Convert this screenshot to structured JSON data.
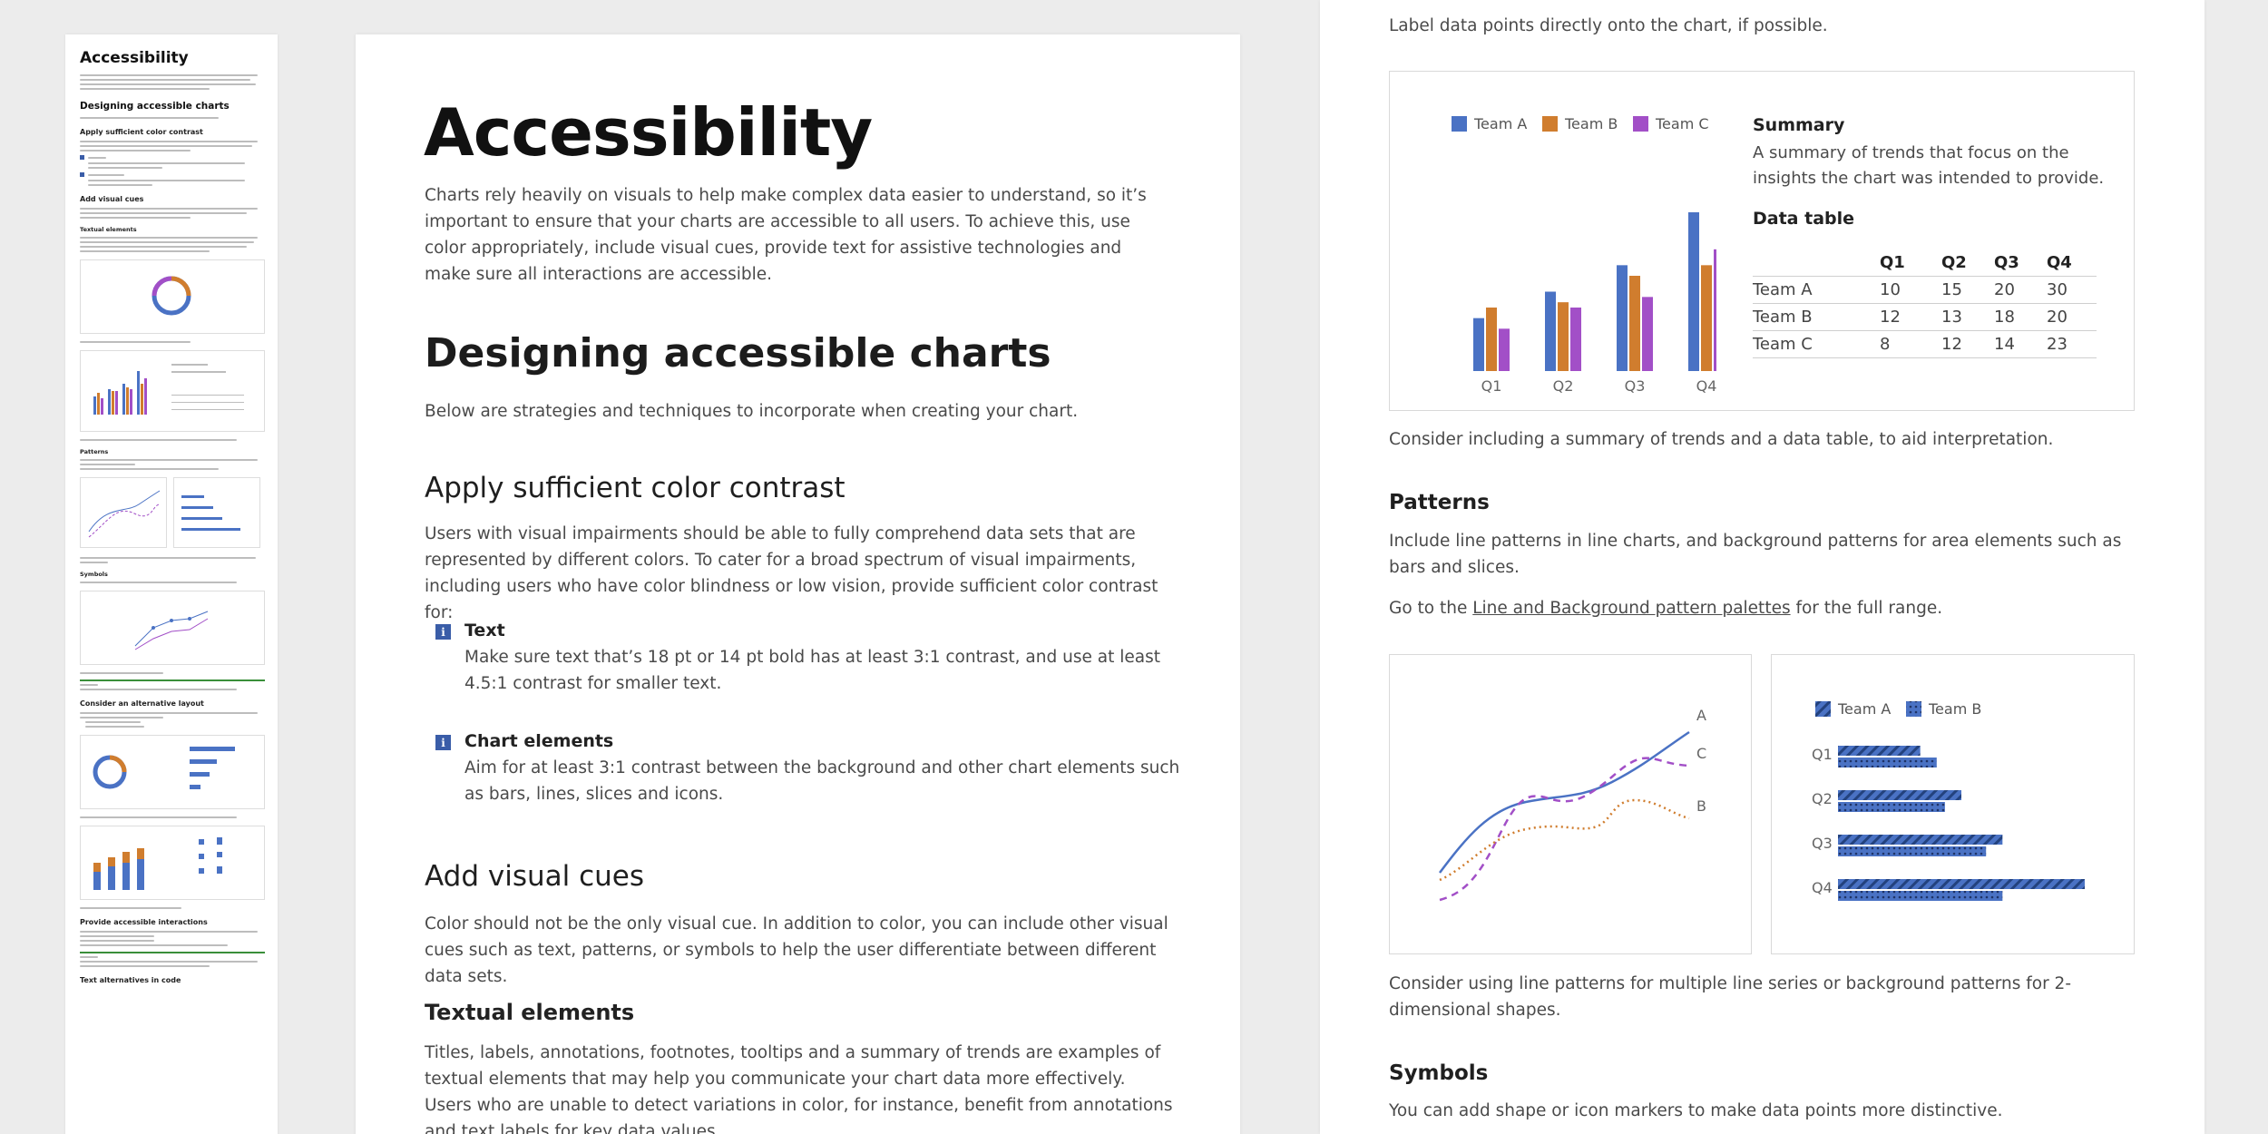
{
  "thumbnail": {
    "title": "Accessibility",
    "h_designing": "Designing accessible charts",
    "h_contrast": "Apply sufficient color contrast",
    "h_visual_cues": "Add visual cues",
    "h_textual": "Textual elements",
    "h_patterns": "Patterns",
    "h_symbols": "Symbols",
    "h_layout": "Consider an alternative layout",
    "h_interactions": "Provide accessible interactions",
    "h_text_alt": "Text alternatives in code"
  },
  "main": {
    "title": "Accessibility",
    "intro": "Charts rely heavily on visuals to help make complex data easier to understand, so it’s important to ensure that your charts are accessible to all users. To achieve this, use color appropriately, include visual cues, provide text for assistive technologies and make sure all interactions are accessible.",
    "designing_heading": "Designing accessible charts",
    "designing_text": "Below are strategies and techniques to incorporate when creating your chart.",
    "contrast_heading": "Apply sufficient color contrast",
    "contrast_text": "Users with visual impairments should be able to fully comprehend data sets that are represented by different colors. To cater for a broad spectrum of visual impairments, including users who have color blindness or low vision, provide sufficient color contrast for:",
    "items": [
      {
        "title": "Text",
        "text": "Make sure text that’s 18 pt or 14 pt bold has at least 3:1 contrast, and use at least 4.5:1 contrast for smaller text."
      },
      {
        "title": "Chart elements",
        "text": "Aim for at least 3:1 contrast between the background and other chart elements such as bars, lines, slices and icons."
      }
    ],
    "info_icon": "i",
    "visual_cues_heading": "Add visual cues",
    "visual_cues_text": "Color should not be the only visual cue. In addition to color, you can include other visual cues such as text, patterns, or symbols to help the user differentiate between different data sets.",
    "textual_heading": "Textual elements",
    "textual_text": "Titles, labels, annotations, footnotes, tooltips and a summary of trends are examples of textual elements that may help you communicate your chart data more effectively. Users who are unable to detect variations in color, for instance, benefit from annotations and text labels for key data values."
  },
  "right": {
    "label_text": "Label data points directly onto the chart, if possible.",
    "summary_caption": "Consider including a summary of trends and a data table, to aid interpretation.",
    "patterns_heading": "Patterns",
    "patterns_text": "Include line patterns in line charts, and background patterns for area elements such as bars and slices.",
    "goto_prefix": "Go to the ",
    "goto_link": "Line and Background pattern palettes",
    "goto_suffix": " for the full range.",
    "patterns_caption": "Consider using line patterns for multiple line series or background patterns for 2-dimensional shapes.",
    "symbols_heading": "Symbols",
    "symbols_text": "You can add shape or icon markers to make data points more distinctive."
  },
  "summary_panel": {
    "heading": "Summary",
    "text_line1": "A summary of trends that focus on the",
    "text_line2": "insights the chart was intended to provide.",
    "table_heading": "Data table"
  },
  "colors": {
    "team_a": "#4a72c4",
    "team_b": "#d07d2e",
    "team_c": "#a24fc7"
  },
  "chart_data": [
    {
      "type": "bar",
      "categories": [
        "Q1",
        "Q2",
        "Q3",
        "Q4"
      ],
      "series": [
        {
          "name": "Team A",
          "values": [
            10,
            15,
            20,
            30
          ]
        },
        {
          "name": "Team B",
          "values": [
            12,
            13,
            18,
            20
          ]
        },
        {
          "name": "Team C",
          "values": [
            8,
            12,
            14,
            23
          ]
        }
      ],
      "ylim": [
        0,
        30
      ],
      "legend": "top",
      "table_headers": [
        "",
        "Q1",
        "Q2",
        "Q3",
        "Q4"
      ]
    },
    {
      "type": "line",
      "series": [
        {
          "name": "A"
        },
        {
          "name": "C"
        },
        {
          "name": "B"
        }
      ],
      "line_styles": [
        "solid",
        "dashed",
        "dotted"
      ],
      "label_position": "right"
    },
    {
      "type": "bar",
      "orientation": "horizontal",
      "categories": [
        "Q1",
        "Q2",
        "Q3",
        "Q4"
      ],
      "series": [
        {
          "name": "Team A",
          "values": [
            10,
            15,
            20,
            30
          ],
          "pattern": "diagonal-stripes"
        },
        {
          "name": "Team B",
          "values": [
            12,
            13,
            18,
            20
          ],
          "pattern": "dots"
        }
      ],
      "xlim": [
        0,
        30
      ],
      "legend": "top"
    }
  ]
}
